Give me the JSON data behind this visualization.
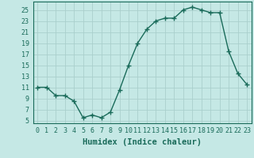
{
  "x": [
    0,
    1,
    2,
    3,
    4,
    5,
    6,
    7,
    8,
    9,
    10,
    11,
    12,
    13,
    14,
    15,
    16,
    17,
    18,
    19,
    20,
    21,
    22,
    23
  ],
  "y": [
    11,
    11,
    9.5,
    9.5,
    8.5,
    5.5,
    6,
    5.5,
    6.5,
    10.5,
    15,
    19,
    21.5,
    23,
    23.5,
    23.5,
    25,
    25.5,
    25,
    24.5,
    24.5,
    17.5,
    13.5,
    11.5
  ],
  "line_color": "#1a6b5a",
  "marker": "+",
  "marker_size": 4,
  "bg_color": "#c5e8e5",
  "grid_color": "#aacfcc",
  "xlabel": "Humidex (Indice chaleur)",
  "xlabel_fontsize": 7.5,
  "yticks": [
    5,
    7,
    9,
    11,
    13,
    15,
    17,
    19,
    21,
    23,
    25
  ],
  "xticks": [
    0,
    1,
    2,
    3,
    4,
    5,
    6,
    7,
    8,
    9,
    10,
    11,
    12,
    13,
    14,
    15,
    16,
    17,
    18,
    19,
    20,
    21,
    22,
    23
  ],
  "xlim": [
    -0.5,
    23.5
  ],
  "ylim": [
    4.5,
    26.5
  ],
  "tick_fontsize": 6,
  "linewidth": 1.0
}
